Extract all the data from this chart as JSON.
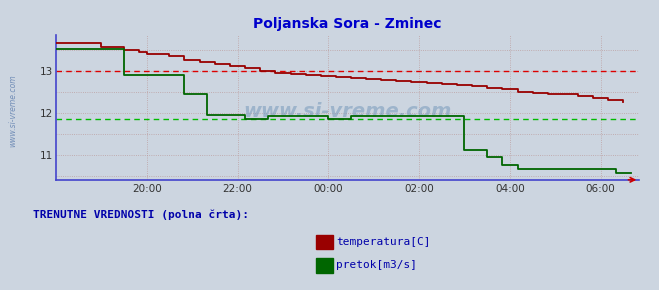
{
  "title": "Poljanska Sora - Zminec",
  "title_color": "#0000cc",
  "bg_color": "#ccd5e0",
  "plot_bg_color": "#ccd5e0",
  "spine_color": "#4444cc",
  "grid_color_v": "#bb9999",
  "grid_color_h": "#bb9999",
  "temp_color": "#990000",
  "flow_color": "#006600",
  "dashed_temp_color": "#dd0000",
  "dashed_flow_color": "#00bb00",
  "dashed_temp_y": 13.0,
  "dashed_flow_y": 11.85,
  "xlim_start": 18.0,
  "xlim_end": 30.85,
  "ylim_min": 10.4,
  "ylim_max": 13.85,
  "yticks": [
    11,
    12,
    13
  ],
  "xtick_labels": [
    "20:00",
    "22:00",
    "00:00",
    "02:00",
    "04:00",
    "06:00"
  ],
  "xtick_vals": [
    20.0,
    22.0,
    24.0,
    26.0,
    28.0,
    30.0
  ],
  "watermark": "www.si-vreme.com",
  "watermark_color": "#7799bb",
  "legend_label1": "temperatura[C]",
  "legend_label2": "pretok[m3/s]",
  "legend_text": "TRENUTNE VREDNOSTI (polna črta):",
  "temp_data_x": [
    18.0,
    18.83,
    19.0,
    19.5,
    19.83,
    20.0,
    20.5,
    20.83,
    21.17,
    21.5,
    21.83,
    22.17,
    22.5,
    22.83,
    23.17,
    23.5,
    23.83,
    24.17,
    24.5,
    24.83,
    25.17,
    25.5,
    25.83,
    26.17,
    26.5,
    26.83,
    27.17,
    27.5,
    27.83,
    28.17,
    28.5,
    28.83,
    29.17,
    29.5,
    29.83,
    30.17,
    30.5
  ],
  "temp_data_y": [
    13.65,
    13.65,
    13.55,
    13.5,
    13.45,
    13.4,
    13.35,
    13.25,
    13.2,
    13.15,
    13.1,
    13.05,
    13.0,
    12.95,
    12.92,
    12.9,
    12.88,
    12.85,
    12.83,
    12.8,
    12.78,
    12.75,
    12.73,
    12.7,
    12.68,
    12.65,
    12.62,
    12.58,
    12.55,
    12.5,
    12.47,
    12.45,
    12.43,
    12.4,
    12.35,
    12.3,
    12.25
  ],
  "flow_data_x": [
    18.0,
    19.5,
    19.5,
    20.83,
    20.83,
    21.33,
    21.33,
    22.17,
    22.17,
    22.67,
    22.67,
    24.0,
    24.0,
    24.5,
    24.5,
    27.0,
    27.0,
    27.5,
    27.5,
    27.83,
    27.83,
    28.17,
    28.17,
    30.33,
    30.33,
    30.67
  ],
  "flow_data_y": [
    13.52,
    13.52,
    12.9,
    12.9,
    12.45,
    12.45,
    11.95,
    11.95,
    11.85,
    11.85,
    11.92,
    11.92,
    11.85,
    11.85,
    11.92,
    11.92,
    11.1,
    11.1,
    10.95,
    10.95,
    10.75,
    10.75,
    10.65,
    10.65,
    10.55,
    10.55
  ],
  "arrow_color": "#cc0000"
}
